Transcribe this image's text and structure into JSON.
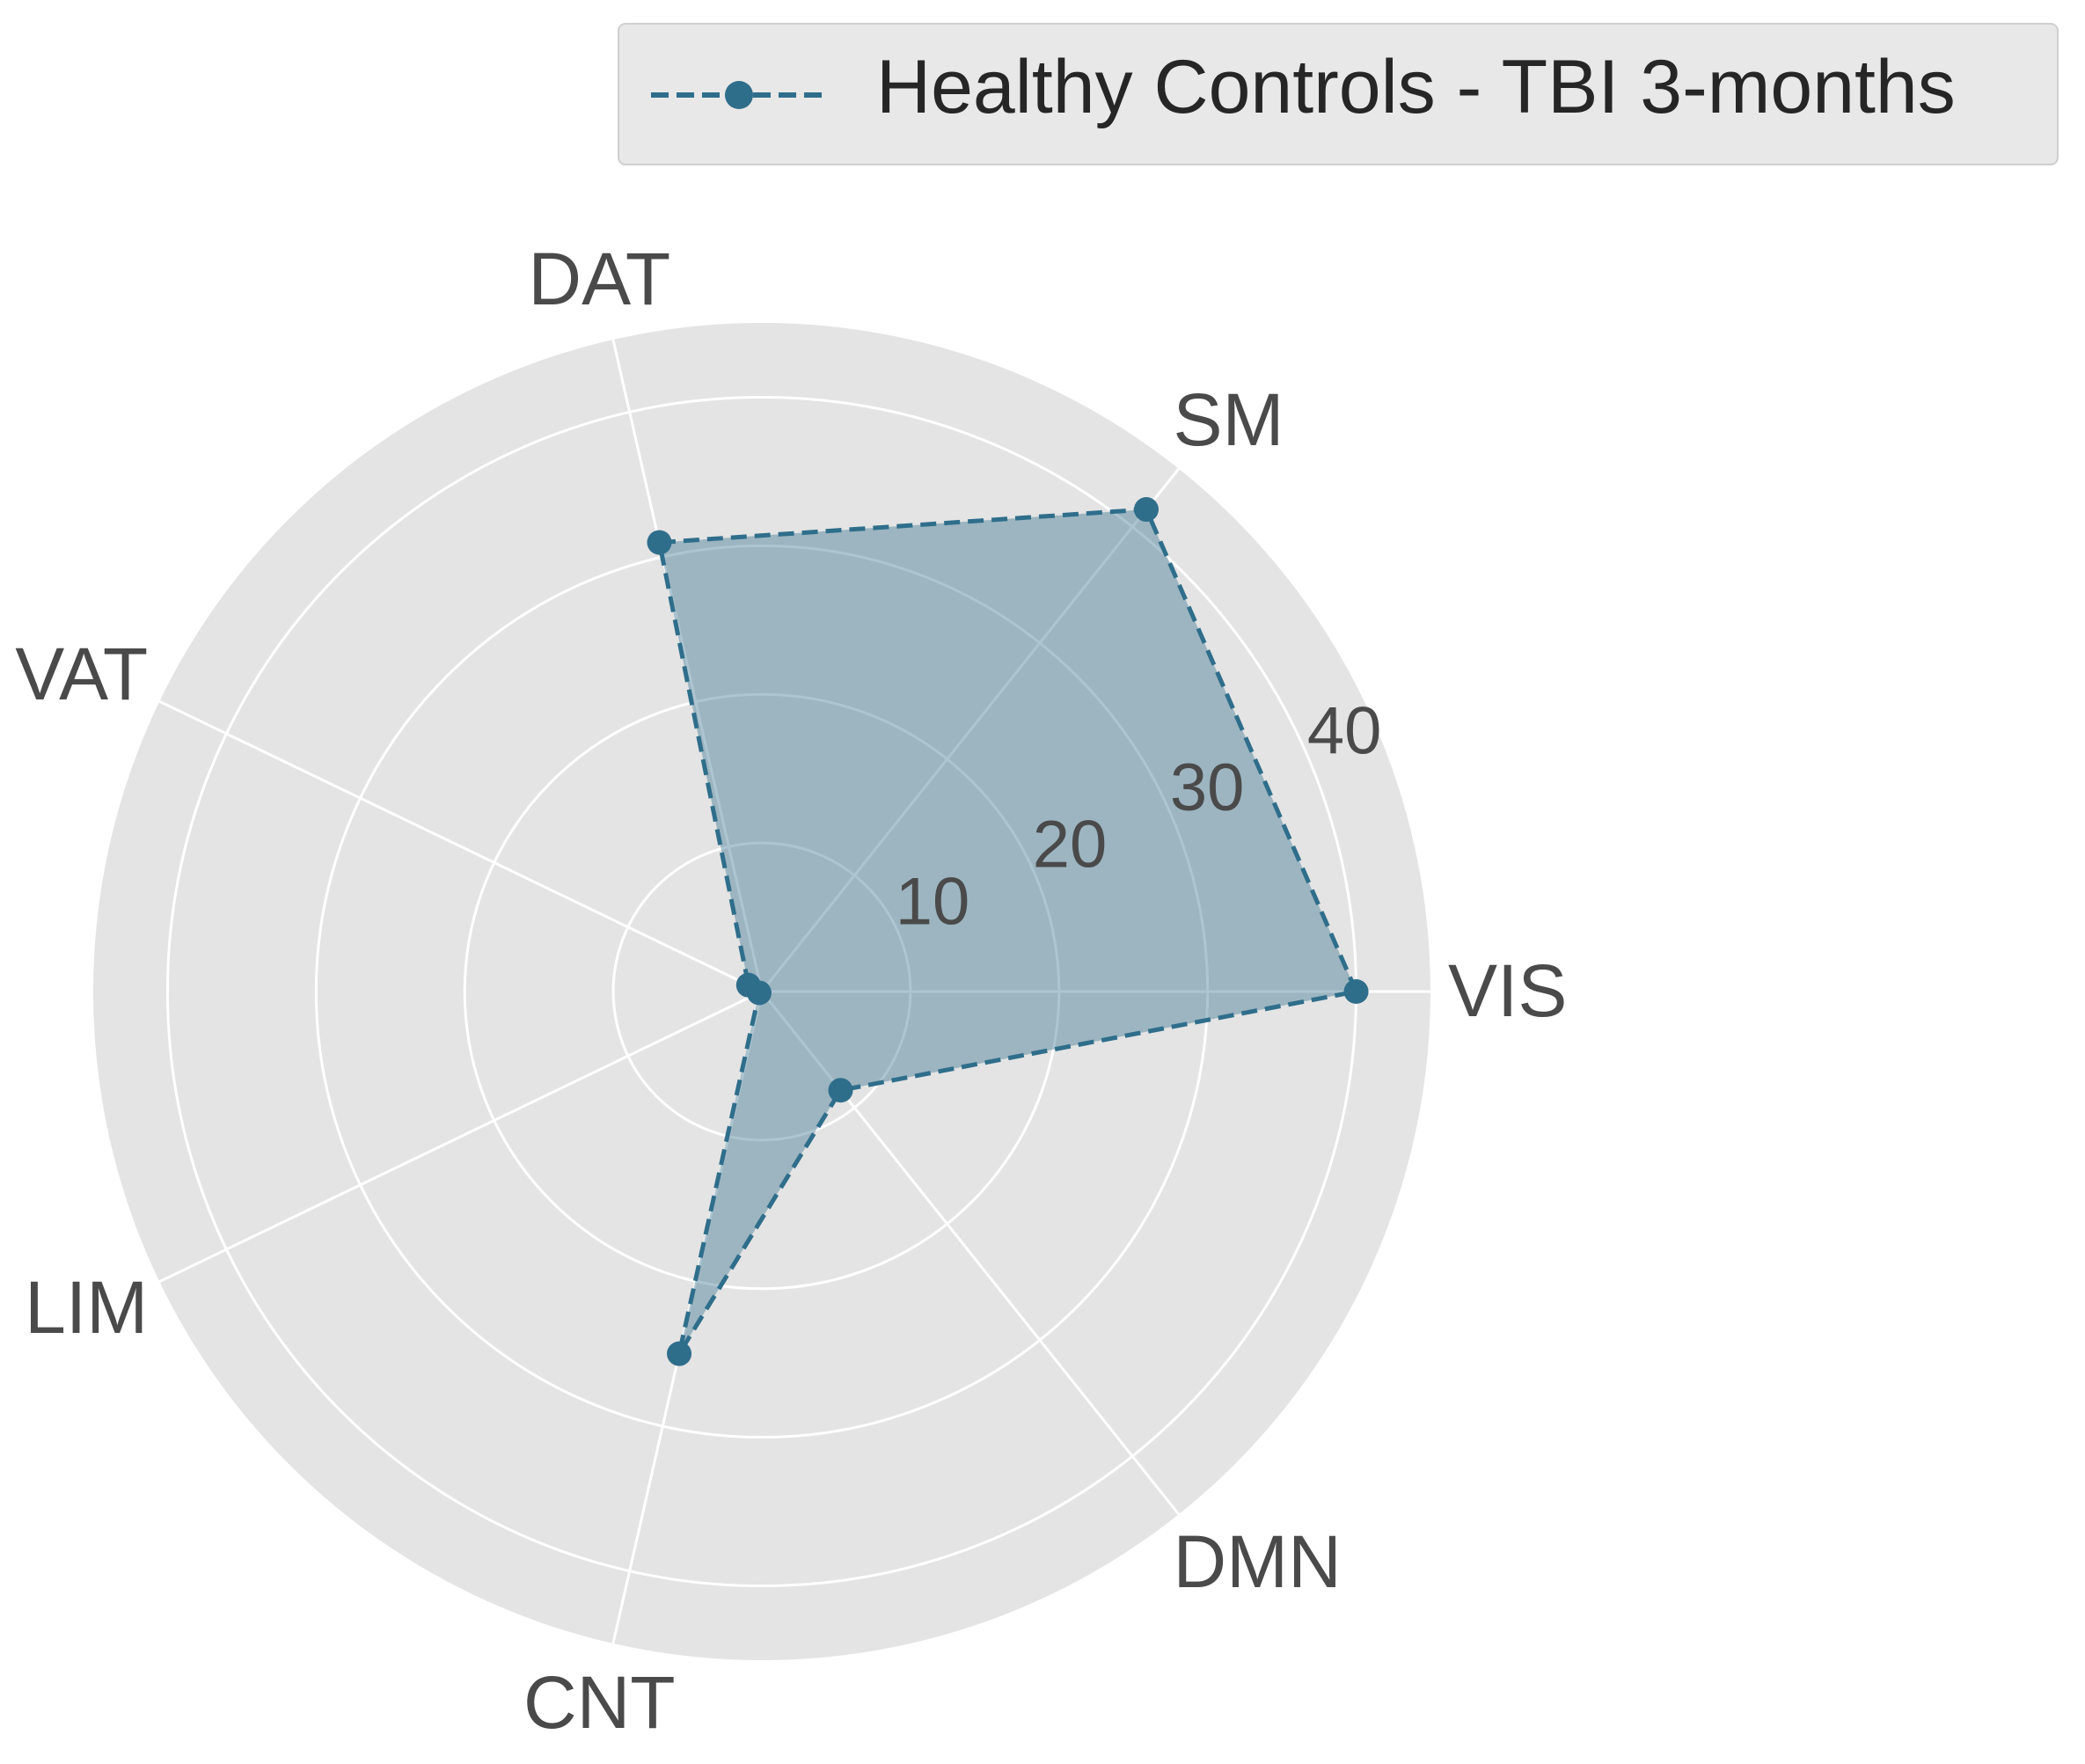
{
  "chart_data": {
    "type": "radar",
    "categories": [
      "VIS",
      "SM",
      "DAT",
      "VAT",
      "LIM",
      "CNT",
      "DMN"
    ],
    "series": [
      {
        "name": "Healthy Controls - TBI 3-months",
        "values": [
          40.0,
          41.5,
          31.0,
          1.0,
          0.2,
          25.0,
          8.5
        ]
      }
    ],
    "radial_ticks": [
      10,
      20,
      30,
      40
    ],
    "rlim": [
      0,
      45
    ],
    "grid": true,
    "legend_position": "top-right",
    "line_style": "dashed",
    "marker": "circle",
    "colors": {
      "series": "#2f6e8b",
      "fill": "#2f6e8b",
      "background": "#e4e4e4",
      "grid": "#ffffff"
    }
  }
}
